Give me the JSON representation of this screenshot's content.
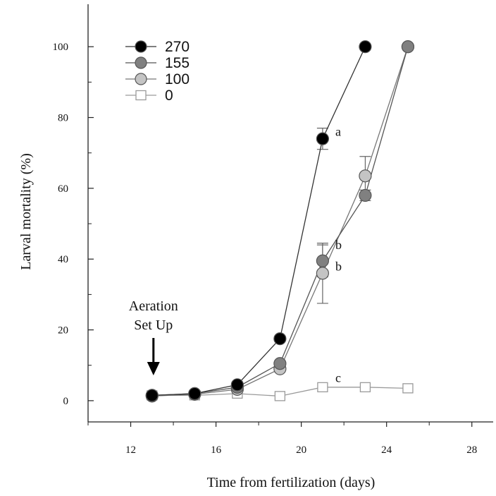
{
  "chart_data": {
    "type": "line",
    "xlabel": "Time from fertilization (days)",
    "ylabel": "Larval mortality (%)",
    "xlim": [
      10,
      29
    ],
    "ylim": [
      -6,
      112
    ],
    "xticks": [
      12,
      16,
      20,
      24,
      28
    ],
    "xtick_labels": [
      "12",
      "16",
      "20",
      "24",
      "28"
    ],
    "yticks": [
      0,
      20,
      40,
      60,
      80,
      100
    ],
    "ytick_labels": [
      "0",
      "20",
      "40",
      "60",
      "80",
      "100"
    ],
    "grid": false,
    "legend_position": "top-left",
    "series": [
      {
        "name": "270",
        "marker": "circle",
        "fill": "#000000",
        "x": [
          13,
          15,
          17,
          19,
          21,
          23
        ],
        "y": [
          1.5,
          2.0,
          4.5,
          17.5,
          74.0,
          100.0
        ],
        "err": [
          0,
          0,
          0,
          0,
          3,
          0
        ]
      },
      {
        "name": "155",
        "marker": "circle",
        "fill": "#808080",
        "x": [
          13,
          15,
          17,
          19,
          21,
          23,
          25
        ],
        "y": [
          1.5,
          2.0,
          3.8,
          10.5,
          39.5,
          58.0,
          100.0
        ],
        "err": [
          0,
          0,
          0,
          0,
          4.5,
          1.5,
          0
        ]
      },
      {
        "name": "100",
        "marker": "circle",
        "fill": "#c4c4c4",
        "x": [
          13,
          15,
          17,
          19,
          21,
          23,
          25
        ],
        "y": [
          1.3,
          1.8,
          3.2,
          9.0,
          36.0,
          63.5,
          100.0
        ],
        "err": [
          0,
          0,
          0,
          0,
          8.5,
          5.5,
          0
        ]
      },
      {
        "name": "0",
        "marker": "square",
        "fill": "#ffffff",
        "x": [
          13,
          15,
          17,
          19,
          21,
          23,
          25
        ],
        "y": [
          1.5,
          1.5,
          2.0,
          1.3,
          3.8,
          3.8,
          3.5
        ],
        "err": [
          0,
          0,
          0,
          0,
          0,
          0,
          0
        ]
      }
    ],
    "annotations": [
      {
        "text": "a",
        "x": 21.6,
        "y": 76
      },
      {
        "text": "b",
        "x": 21.6,
        "y": 44
      },
      {
        "text": "b",
        "x": 21.6,
        "y": 38
      },
      {
        "text": "c",
        "x": 21.6,
        "y": 6.5
      }
    ],
    "arrow_annotation": {
      "lines": [
        "Aeration",
        "Set Up"
      ],
      "x": 13
    }
  }
}
